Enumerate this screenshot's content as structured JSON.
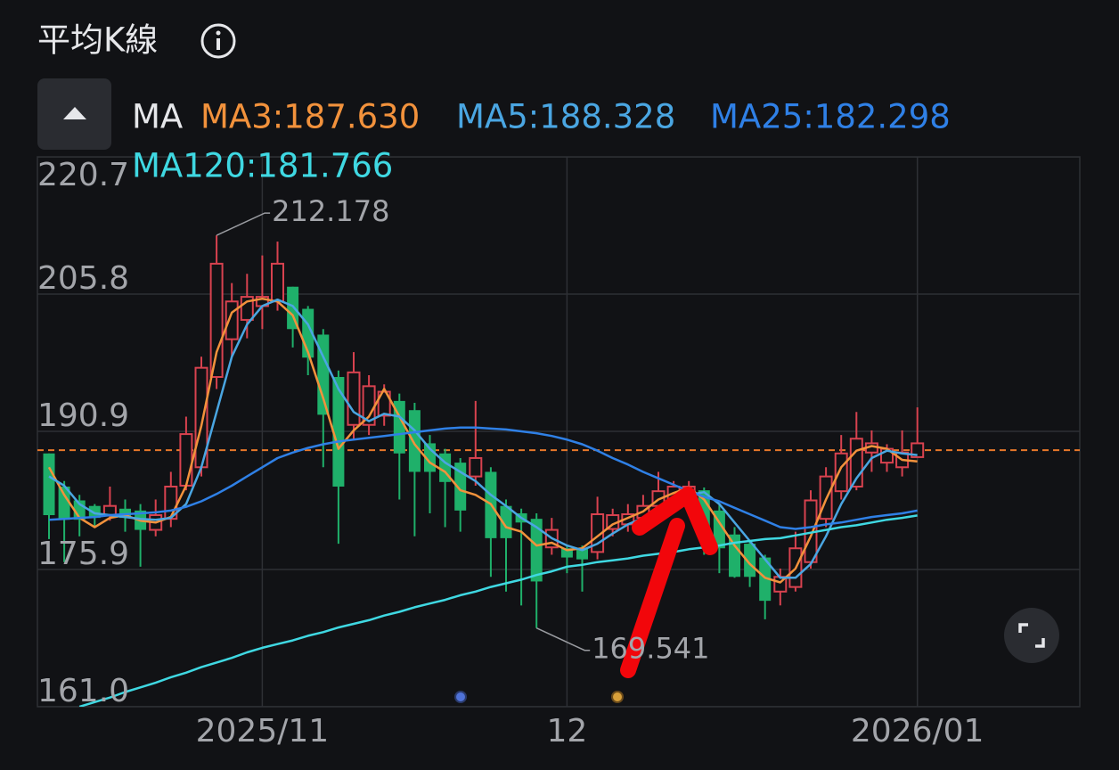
{
  "chart_data": {
    "type": "candlestick",
    "title": "平均K線",
    "indicator_label": "MA",
    "categories": [
      null,
      null,
      null,
      null,
      null,
      null,
      null,
      null,
      null,
      null,
      null,
      null,
      null,
      null,
      "2025/11",
      null,
      null,
      null,
      null,
      null,
      null,
      null,
      null,
      null,
      null,
      null,
      null,
      null,
      null,
      null,
      null,
      null,
      null,
      null,
      "12",
      null,
      null,
      null,
      null,
      null,
      null,
      null,
      null,
      null,
      null,
      null,
      null,
      null,
      null,
      null,
      null,
      null,
      null,
      null,
      null,
      null,
      null,
      "2026/01"
    ],
    "open": [
      188.5,
      184.9,
      183.4,
      182.8,
      181.8,
      182.5,
      182.3,
      180.2,
      181.4,
      185.0,
      187.0,
      196.8,
      200.9,
      203.0,
      204.5,
      205.0,
      206.6,
      204.2,
      201.4,
      196.8,
      191.6,
      191.6,
      192.6,
      194.2,
      193.2,
      189.6,
      188.5,
      187.5,
      186.0,
      186.5,
      182.8,
      182.0,
      181.4,
      178.3,
      178.2,
      178.2,
      177.8,
      180.3,
      180.8,
      181.5,
      182.8,
      183.4,
      183.9,
      184.5,
      182.3,
      179.7,
      178.7,
      177.2,
      173.5,
      174.0,
      176.7,
      181.4,
      184.4,
      184.9,
      188.6,
      187.5,
      187.0,
      188.1
    ],
    "high": [
      188.5,
      185.5,
      184.0,
      183.0,
      184.9,
      183.5,
      183.0,
      183.5,
      186.5,
      192.5,
      199.0,
      212.178,
      207.0,
      208.0,
      210.0,
      211.5,
      206.6,
      204.5,
      202.0,
      197.5,
      199.5,
      197.0,
      196.0,
      195.0,
      194.0,
      190.5,
      189.0,
      188.0,
      194.2,
      187.0,
      183.5,
      182.5,
      182.0,
      181.5,
      178.5,
      178.5,
      183.8,
      182.5,
      183.0,
      184.0,
      186.5,
      185.5,
      185.5,
      184.8,
      183.0,
      180.5,
      179.0,
      177.5,
      176.0,
      180.0,
      184.5,
      187.0,
      190.5,
      193.0,
      191.0,
      189.5,
      191.0,
      193.5
    ],
    "low": [
      179.2,
      176.7,
      179.5,
      180.5,
      181.2,
      180.0,
      176.2,
      179.5,
      180.5,
      184.5,
      186.0,
      195.5,
      199.0,
      201.0,
      202.0,
      204.0,
      200.0,
      197.0,
      187.0,
      178.7,
      190.0,
      190.5,
      191.5,
      183.5,
      179.5,
      182.0,
      180.5,
      180.0,
      185.0,
      175.1,
      173.5,
      172.0,
      169.541,
      177.5,
      175.5,
      173.5,
      177.0,
      179.5,
      180.0,
      180.8,
      182.0,
      183.0,
      183.5,
      177.5,
      175.5,
      175.0,
      174.0,
      170.5,
      172.0,
      173.5,
      176.0,
      180.5,
      183.5,
      184.5,
      186.5,
      186.5,
      186.0,
      188.1
    ],
    "close": [
      181.8,
      181.3,
      181.3,
      181.5,
      182.8,
      181.5,
      180.2,
      181.8,
      184.9,
      190.6,
      197.8,
      209.1,
      205.0,
      205.5,
      205.5,
      209.1,
      202.0,
      198.9,
      192.7,
      184.9,
      197.3,
      195.8,
      195.2,
      188.5,
      186.5,
      186.5,
      185.4,
      182.3,
      188.0,
      179.3,
      179.3,
      181.0,
      174.6,
      180.2,
      177.2,
      177.0,
      181.9,
      181.8,
      181.9,
      182.8,
      184.4,
      184.9,
      184.9,
      180.3,
      178.2,
      175.1,
      175.1,
      172.5,
      175.1,
      178.2,
      183.4,
      186.0,
      188.5,
      190.1,
      189.6,
      189.0,
      188.6,
      189.6
    ],
    "up_color": "#d8424f",
    "down_color": "#1fb06a",
    "series": [
      {
        "name": "MA3:187.630",
        "color": "#f2923c",
        "values": [
          187.0,
          184.0,
          181.5,
          180.5,
          181.5,
          181.8,
          181.2,
          181.0,
          181.6,
          185.0,
          191.5,
          199.5,
          203.8,
          205.0,
          205.3,
          205.0,
          203.5,
          199.5,
          194.5,
          189.0,
          191.0,
          192.5,
          195.5,
          192.5,
          189.5,
          187.5,
          186.5,
          184.5,
          184.0,
          183.0,
          180.5,
          180.0,
          178.5,
          178.8,
          178.0,
          178.2,
          179.5,
          180.8,
          181.5,
          182.2,
          183.5,
          184.2,
          184.8,
          183.5,
          181.0,
          178.5,
          176.5,
          175.0,
          174.5,
          176.0,
          179.5,
          183.5,
          187.0,
          188.8,
          189.3,
          189.0,
          187.8,
          187.63
        ]
      },
      {
        "name": "MA5:188.328",
        "color": "#4aa6e2",
        "values": [
          186.0,
          185.0,
          183.0,
          182.0,
          181.8,
          181.6,
          181.4,
          181.3,
          181.5,
          183.0,
          187.0,
          193.0,
          199.0,
          202.5,
          204.5,
          205.2,
          204.5,
          202.5,
          199.0,
          195.5,
          193.0,
          192.0,
          192.8,
          192.5,
          191.0,
          189.0,
          187.5,
          186.5,
          185.5,
          184.0,
          182.8,
          181.5,
          180.5,
          179.3,
          178.5,
          178.0,
          178.7,
          179.8,
          180.8,
          181.5,
          182.5,
          183.3,
          184.0,
          184.3,
          183.0,
          181.0,
          179.0,
          177.0,
          175.0,
          175.0,
          176.5,
          179.5,
          183.0,
          185.8,
          188.0,
          188.8,
          188.5,
          188.328
        ]
      },
      {
        "name": "MA25:182.298",
        "color": "#2f80e6",
        "values": [
          181.3,
          181.4,
          181.5,
          181.6,
          181.8,
          181.9,
          182.0,
          182.1,
          182.3,
          182.7,
          183.3,
          184.1,
          185.0,
          186.0,
          187.0,
          188.0,
          188.6,
          189.1,
          189.5,
          189.8,
          190.0,
          190.2,
          190.4,
          190.6,
          190.8,
          191.0,
          191.2,
          191.3,
          191.3,
          191.2,
          191.1,
          190.9,
          190.7,
          190.4,
          190.0,
          189.5,
          188.8,
          188.0,
          187.3,
          186.5,
          185.8,
          185.1,
          184.4,
          183.8,
          183.3,
          182.6,
          181.9,
          181.2,
          180.5,
          180.3,
          180.5,
          180.8,
          181.0,
          181.3,
          181.6,
          181.8,
          182.0,
          182.298
        ]
      },
      {
        "name": "MA120:181.766",
        "color": "#3fd8e2",
        "values": [
          null,
          null,
          161.0,
          161.5,
          162.0,
          162.6,
          163.1,
          163.6,
          164.2,
          164.7,
          165.3,
          165.8,
          166.3,
          166.9,
          167.4,
          167.8,
          168.2,
          168.7,
          169.1,
          169.6,
          170.0,
          170.4,
          170.9,
          171.3,
          171.8,
          172.2,
          172.6,
          173.1,
          173.5,
          174.0,
          174.4,
          174.8,
          175.3,
          175.7,
          176.2,
          176.4,
          176.7,
          176.9,
          177.1,
          177.4,
          177.6,
          177.8,
          178.1,
          178.3,
          178.5,
          178.8,
          179.0,
          179.2,
          179.3,
          179.6,
          179.9,
          180.2,
          180.5,
          180.7,
          181.0,
          181.3,
          181.5,
          181.766
        ]
      }
    ],
    "ylim": [
      161,
      220.7
    ],
    "yticks": [
      {
        "value": 161,
        "label": "161.0"
      },
      175.9,
      190.9,
      205.8,
      220.7
    ],
    "grid": true,
    "price_line": 188.85,
    "price_line_color": "#e8782a",
    "annotations": [
      {
        "value": 212.178,
        "label": "212.178",
        "index": 11
      },
      {
        "value": 169.541,
        "label": "169.541",
        "index": 32
      }
    ]
  }
}
